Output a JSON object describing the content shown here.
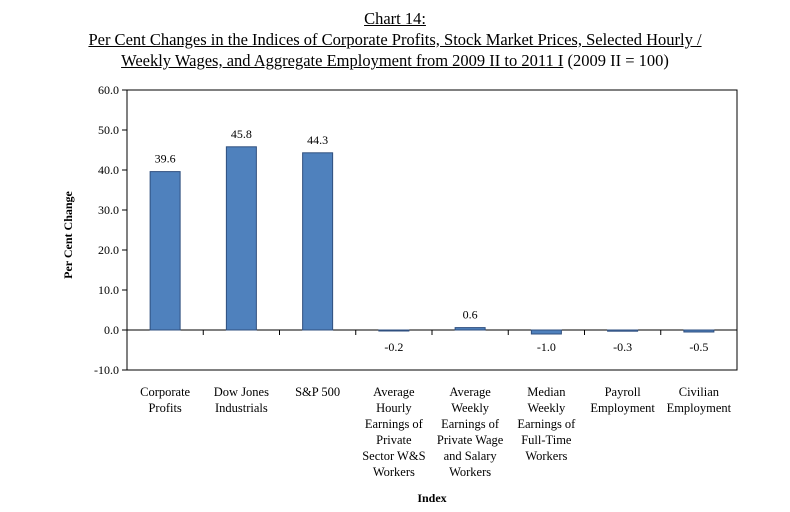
{
  "title": {
    "line1": "Chart 14:",
    "line2": "Per Cent Changes in the Indices of Corporate Profits, Stock Market Prices, Selected Hourly /",
    "line3_underlined": "Weekly Wages, and Aggregate Employment from 2009 II to 2011 I",
    "line3_rest": " (2009 II = 100)"
  },
  "chart_data": {
    "type": "bar",
    "categories": [
      [
        "Corporate",
        "Profits"
      ],
      [
        "Dow Jones",
        "Industrials"
      ],
      [
        "S&P 500"
      ],
      [
        "Average",
        "Hourly",
        "Earnings of",
        "Private",
        "Sector W&S",
        "Workers"
      ],
      [
        "Average",
        "Weekly",
        "Earnings of",
        "Private Wage",
        "and Salary",
        "Workers"
      ],
      [
        "Median",
        "Weekly",
        "Earnings of",
        "Full-Time",
        "Workers"
      ],
      [
        "Payroll",
        "Employment"
      ],
      [
        "Civilian",
        "Employment"
      ]
    ],
    "values": [
      39.6,
      45.8,
      44.3,
      -0.2,
      0.6,
      -1.0,
      -0.3,
      -0.5
    ],
    "data_labels": [
      "39.6",
      "45.8",
      "44.3",
      "-0.2",
      "0.6",
      "-1.0",
      "-0.3",
      "-0.5"
    ],
    "ylim": [
      -10,
      60
    ],
    "yticks": [
      -10,
      0,
      10,
      20,
      30,
      40,
      50,
      60
    ],
    "ytick_labels": [
      "-10.0",
      "0.0",
      "10.0",
      "20.0",
      "30.0",
      "40.0",
      "50.0",
      "60.0"
    ],
    "xlabel": "Index",
    "ylabel": "Per Cent Change",
    "bar_color": "#4F81BD",
    "bar_edge_color": "#2F4F7F",
    "grid": false
  }
}
